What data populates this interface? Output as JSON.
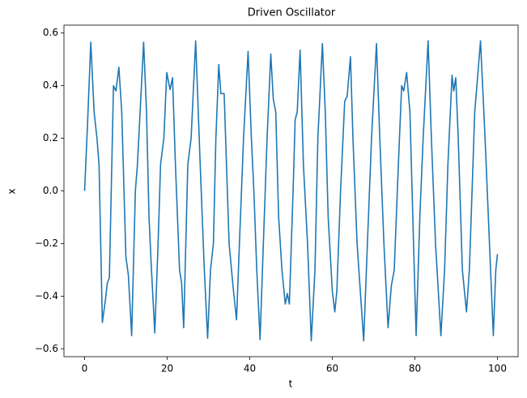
{
  "chart_data": {
    "type": "line",
    "title": "Driven Oscillator",
    "x_label": "t",
    "y_label": "x",
    "x": [
      0,
      0.7,
      1.5,
      2.3,
      3,
      3.5,
      4.3,
      5,
      5.5,
      6,
      7,
      7.6,
      8.3,
      9,
      10,
      10.6,
      11.4,
      12.3,
      12.8,
      14.3,
      15,
      15.6,
      16.2,
      17,
      17.8,
      18.4,
      19.2,
      19.9,
      20.7,
      21.3,
      22,
      23,
      23.5,
      24,
      25,
      25.8,
      26.9,
      28,
      29,
      29.8,
      30.5,
      31.2,
      31.8,
      32.5,
      33,
      33.8,
      35,
      36,
      36.8,
      37.5,
      38.5,
      39.6,
      40.4,
      41,
      41.7,
      42.5,
      43.3,
      44.2,
      45.1,
      45.7,
      46.3,
      47,
      47.8,
      48.6,
      49.1,
      49.6,
      50.5,
      51,
      51.5,
      52.2,
      53,
      54,
      54.9,
      55.8,
      56.5,
      57.6,
      58.3,
      59,
      60,
      60.6,
      61.1,
      62,
      63,
      63.6,
      64.4,
      65,
      66,
      67.6,
      68.5,
      69.5,
      70.7,
      71.5,
      72.5,
      73.5,
      74.3,
      75,
      76,
      76.8,
      77.3,
      78,
      78.8,
      79.5,
      80.3,
      81.2,
      82,
      83.2,
      84,
      85,
      86.3,
      87.2,
      88,
      89,
      89.4,
      89.9,
      90.5,
      91.5,
      92.5,
      93.2,
      94.5,
      95.9,
      97,
      97.8,
      99,
      99.6,
      100
    ],
    "series": [
      {
        "name": "x",
        "color": "#1f77b4",
        "values": [
          0,
          0.25,
          0.565,
          0.3,
          0.2,
          0.1,
          -0.5,
          -0.42,
          -0.35,
          -0.33,
          0.4,
          0.38,
          0.47,
          0.3,
          -0.25,
          -0.32,
          -0.55,
          0.0,
          0.1,
          0.565,
          0.3,
          -0.1,
          -0.3,
          -0.54,
          -0.2,
          0.1,
          0.2,
          0.45,
          0.385,
          0.43,
          0.1,
          -0.3,
          -0.35,
          -0.52,
          0.1,
          0.2,
          0.57,
          0.1,
          -0.3,
          -0.56,
          -0.3,
          -0.2,
          0.2,
          0.48,
          0.37,
          0.37,
          -0.2,
          -0.37,
          -0.49,
          -0.2,
          0.2,
          0.53,
          0.2,
          0.0,
          -0.3,
          -0.565,
          -0.2,
          0.2,
          0.52,
          0.35,
          0.3,
          -0.1,
          -0.3,
          -0.43,
          -0.39,
          -0.43,
          0.0,
          0.27,
          0.3,
          0.535,
          0.1,
          -0.2,
          -0.57,
          -0.3,
          0.2,
          0.56,
          0.3,
          -0.1,
          -0.38,
          -0.46,
          -0.38,
          0.0,
          0.34,
          0.36,
          0.51,
          0.2,
          -0.2,
          -0.57,
          -0.2,
          0.2,
          0.56,
          0.2,
          -0.2,
          -0.52,
          -0.36,
          -0.3,
          0.1,
          0.4,
          0.38,
          0.45,
          0.3,
          -0.1,
          -0.55,
          -0.1,
          0.2,
          0.57,
          0.2,
          -0.2,
          -0.55,
          -0.3,
          0.1,
          0.44,
          0.38,
          0.43,
          0.2,
          -0.3,
          -0.46,
          -0.3,
          0.3,
          0.57,
          0.2,
          -0.1,
          -0.55,
          -0.3,
          -0.24
        ]
      }
    ],
    "xlim": [
      -5,
      105
    ],
    "xticks": [
      0,
      20,
      40,
      60,
      80,
      100
    ],
    "ylim": [
      -0.63,
      0.63
    ],
    "yticks": [
      {
        "value": -0.6,
        "label": "−0.6"
      },
      {
        "value": -0.4,
        "label": "−0.4"
      },
      {
        "value": -0.2,
        "label": "−0.2"
      },
      {
        "value": 0,
        "label": "0.0"
      },
      0.2,
      0.4,
      0.6
    ]
  }
}
